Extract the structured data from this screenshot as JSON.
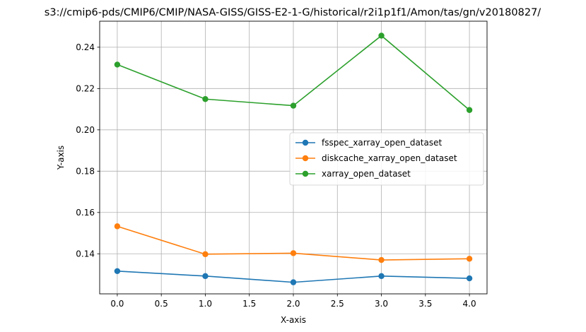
{
  "chart_data": {
    "type": "line",
    "title": "s3://cmip6-pds/CMIP6/CMIP/NASA-GISS/GISS-E2-1-G/historical/r2i1p1f1/Amon/tas/gn/v20180827/",
    "xlabel": "X-axis",
    "ylabel": "Y-axis",
    "x": [
      0,
      1,
      2,
      3,
      4
    ],
    "xlim": [
      -0.2,
      4.2
    ],
    "ylim": [
      0.1206,
      0.2526
    ],
    "xticks": [
      0.0,
      0.5,
      1.0,
      1.5,
      2.0,
      2.5,
      3.0,
      3.5,
      4.0
    ],
    "xtick_labels": [
      "0.0",
      "0.5",
      "1.0",
      "1.5",
      "2.0",
      "2.5",
      "3.0",
      "3.5",
      "4.0"
    ],
    "yticks": [
      0.14,
      0.16,
      0.18,
      0.2,
      0.22,
      0.24
    ],
    "ytick_labels": [
      "0.14",
      "0.16",
      "0.18",
      "0.20",
      "0.22",
      "0.24"
    ],
    "grid": true,
    "legend_position": "center-right",
    "series": [
      {
        "name": "fsspec_xarray_open_dataset",
        "color": "#1f77b4",
        "values": [
          0.1316,
          0.1292,
          0.1262,
          0.1292,
          0.1281
        ]
      },
      {
        "name": "diskcache_xarray_open_dataset",
        "color": "#ff7f0e",
        "values": [
          0.1533,
          0.1398,
          0.1403,
          0.137,
          0.1376
        ]
      },
      {
        "name": "xarray_open_dataset",
        "color": "#2ca02c",
        "values": [
          0.2316,
          0.2149,
          0.2117,
          0.2456,
          0.2096
        ]
      }
    ]
  }
}
